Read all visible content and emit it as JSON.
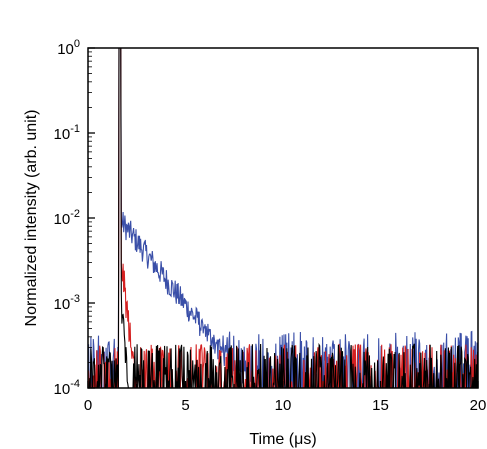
{
  "chart_data": {
    "type": "line",
    "xlabel": "Time (μs)",
    "ylabel": "Normalized intensity (arb. unit)",
    "xlim": [
      0,
      20
    ],
    "ylim": [
      0.0001,
      1
    ],
    "yscale": "log",
    "grid": false,
    "x_ticks": [
      0,
      5,
      10,
      15,
      20
    ],
    "x_tick_labels": [
      "0",
      "5",
      "10",
      "15",
      "20"
    ],
    "y_ticks": [
      {
        "value": 1,
        "base": "10",
        "exp": "0"
      },
      {
        "value": 0.1,
        "base": "10",
        "exp": "-1"
      },
      {
        "value": 0.01,
        "base": "10",
        "exp": "-2"
      },
      {
        "value": 0.001,
        "base": "10",
        "exp": "-3"
      },
      {
        "value": 0.0001,
        "base": "10",
        "exp": "-4"
      }
    ],
    "series": [
      {
        "color": "#3a4fa8",
        "peak_time": 1.65,
        "peak": 1.0,
        "tail_amplitude": 0.0095,
        "tail_decay": 1.45,
        "noise_floor": 0.00025,
        "spread": 0.35
      },
      {
        "color": "#d42020",
        "peak_time": 1.65,
        "peak": 1.0,
        "tail_amplitude": 0.004,
        "tail_decay": 0.22,
        "noise_floor": 0.00018,
        "spread": 0.45
      },
      {
        "color": "#000000",
        "peak_time": 1.65,
        "peak": 1.0,
        "tail_amplitude": 0.0015,
        "tail_decay": 0.15,
        "noise_floor": 0.00018,
        "spread": 0.45
      }
    ]
  }
}
